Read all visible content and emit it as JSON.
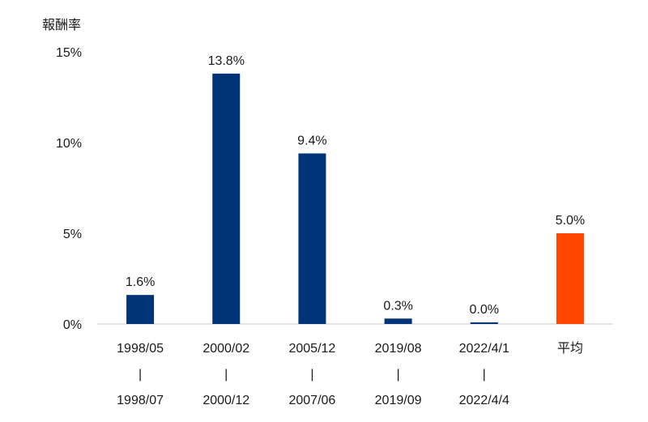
{
  "chart_data": {
    "type": "bar",
    "ylabel": "報酬率",
    "ylim": [
      0,
      15
    ],
    "yticks": [
      "0%",
      "5%",
      "10%",
      "15%"
    ],
    "ytick_values": [
      0,
      5,
      10,
      15
    ],
    "grid": false,
    "categories": [
      {
        "start": "1998/05",
        "sep": "|",
        "end": "1998/07"
      },
      {
        "start": "2000/02",
        "sep": "|",
        "end": "2000/12"
      },
      {
        "start": "2005/12",
        "sep": "|",
        "end": "2007/06"
      },
      {
        "start": "2019/08",
        "sep": "|",
        "end": "2019/09"
      },
      {
        "start": "2022/4/1",
        "sep": "|",
        "end": "2022/4/4"
      },
      {
        "start": "平均",
        "sep": "",
        "end": ""
      }
    ],
    "values": [
      1.6,
      13.8,
      9.4,
      0.3,
      0.0,
      5.0
    ],
    "data_labels": [
      "1.6%",
      "13.8%",
      "9.4%",
      "0.3%",
      "0.0%",
      "5.0%"
    ],
    "colors": [
      "#003478",
      "#003478",
      "#003478",
      "#003478",
      "#003478",
      "#ff4500"
    ]
  }
}
